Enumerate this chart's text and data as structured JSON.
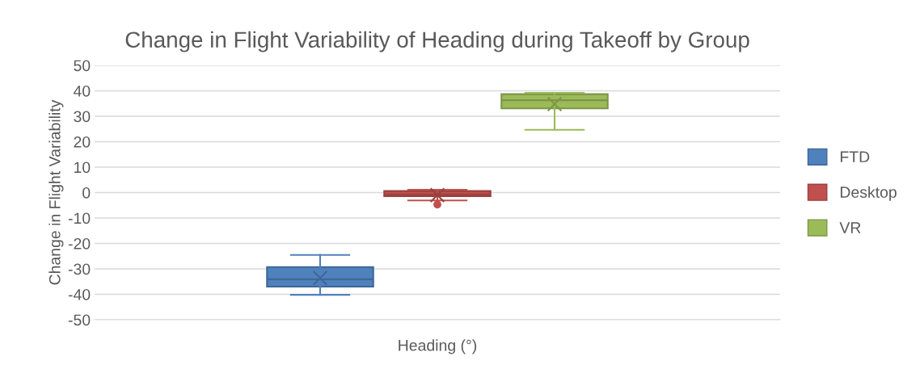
{
  "chart_data": {
    "type": "box",
    "title": "Change in Flight Variability of Heading during Takeoff by Group",
    "xlabel": "Heading (°)",
    "ylabel": "Change in Flight Variability",
    "categories": [
      null
    ],
    "series": [
      {
        "name": "FTD",
        "color": "#4f81bd",
        "boxes": [
          {
            "low": -40.2,
            "q1": -37,
            "median": -34.1,
            "q3": -29.3,
            "high": -24.5,
            "mean": -33.6
          }
        ]
      },
      {
        "name": "Desktop",
        "color": "#c0504d",
        "boxes": [
          {
            "low": -3.1,
            "q1": -1.4,
            "median": -0.7,
            "q3": 0.6,
            "high": 1.1,
            "mean": -1,
            "outliers": [
              -4.7
            ]
          }
        ]
      },
      {
        "name": "VR",
        "color": "#9bbb59",
        "boxes": [
          {
            "low": 24.7,
            "q1": 33.1,
            "median": 36.3,
            "q3": 38.7,
            "high": 39.2,
            "mean": 34.8
          }
        ]
      }
    ],
    "ylim": [
      -50,
      50
    ],
    "yticks": [
      -50,
      -40,
      -30,
      -20,
      -10,
      0,
      10,
      20,
      30,
      40,
      50
    ],
    "grid": "y",
    "legend": "right"
  }
}
